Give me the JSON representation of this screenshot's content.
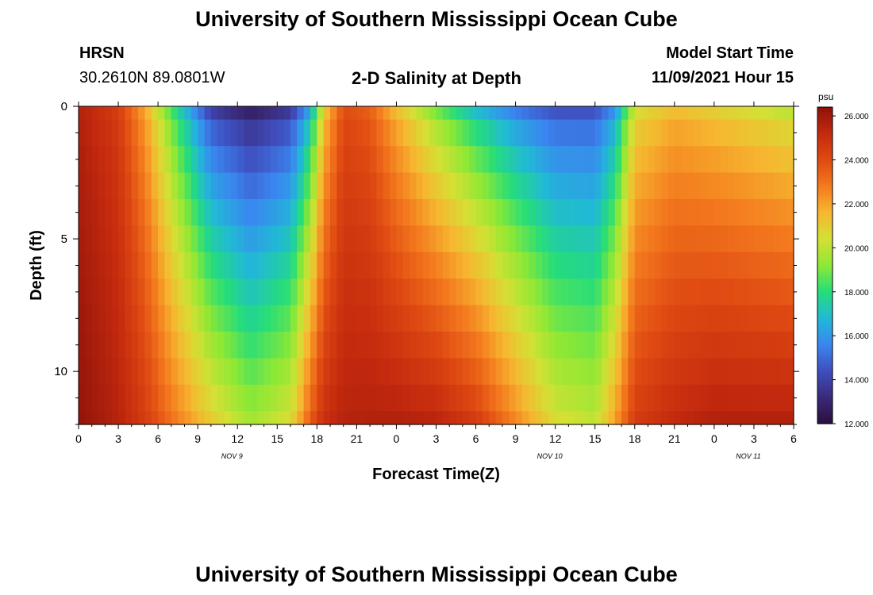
{
  "page_title": "University of Southern Mississippi Ocean Cube",
  "page_title_bottom": "University of Southern Mississippi Ocean Cube",
  "station": {
    "name": "HRSN",
    "coords": "30.2610N  89.0801W"
  },
  "plot_title": "2-D Salinity at Depth",
  "model": {
    "label": "Model Start Time",
    "value": "11/09/2021 Hour 15"
  },
  "chart_data": {
    "type": "heatmap",
    "title": "2-D Salinity at Depth",
    "xlabel": "Forecast Time(Z)",
    "ylabel": "Depth (ft)",
    "x_range_hours": [
      0,
      54
    ],
    "y_range_ft": [
      0,
      12
    ],
    "x_tick_labels": [
      "0",
      "3",
      "6",
      "9",
      "12",
      "15",
      "18",
      "21",
      "0",
      "3",
      "6",
      "9",
      "12",
      "15",
      "18",
      "21",
      "0",
      "3",
      "6"
    ],
    "y_tick_labels": [
      "0",
      "5",
      "10"
    ],
    "y_tick_values": [
      0,
      5,
      10
    ],
    "date_labels": [
      {
        "text": "NOV 9",
        "hour": 12
      },
      {
        "text": "NOV 10",
        "hour": 36
      },
      {
        "text": "NOV 11",
        "hour": 51
      }
    ],
    "colorbar": {
      "unit": "psu",
      "min": 12.0,
      "max": 26.4,
      "labels": [
        "26.000",
        "24.000",
        "22.000",
        "20.000",
        "18.000",
        "16.000",
        "14.000",
        "12.000"
      ],
      "label_values": [
        26,
        24,
        22,
        20,
        18,
        16,
        14,
        12
      ]
    },
    "colormap": [
      "#2a0f3e",
      "#3a2a7a",
      "#3f4fbf",
      "#3a86f0",
      "#21b9d6",
      "#25dd7a",
      "#8ee834",
      "#d4e034",
      "#f6b730",
      "#f47a1e",
      "#df4a12",
      "#c42a0e",
      "#8e120a"
    ],
    "depth_levels_ft": [
      0,
      1,
      2,
      3,
      4,
      5,
      6,
      7,
      8,
      9,
      10,
      11,
      12
    ],
    "salinity_profile_keyframes": [
      {
        "hour": 0,
        "surface": 25.6,
        "bottom": 26.3
      },
      {
        "hour": 3,
        "surface": 24.5,
        "bottom": 25.5
      },
      {
        "hour": 5,
        "surface": 22.0,
        "bottom": 24.5
      },
      {
        "hour": 7,
        "surface": 18.5,
        "bottom": 23.0
      },
      {
        "hour": 10,
        "surface": 14.0,
        "bottom": 21.0
      },
      {
        "hour": 13,
        "surface": 12.8,
        "bottom": 19.5
      },
      {
        "hour": 16,
        "surface": 13.8,
        "bottom": 20.5
      },
      {
        "hour": 17.5,
        "surface": 16.5,
        "bottom": 23.5
      },
      {
        "hour": 18.5,
        "surface": 21.0,
        "bottom": 25.0
      },
      {
        "hour": 20,
        "surface": 24.0,
        "bottom": 25.5
      },
      {
        "hour": 22,
        "surface": 23.5,
        "bottom": 25.6
      },
      {
        "hour": 24,
        "surface": 21.5,
        "bottom": 25.6
      },
      {
        "hour": 27,
        "surface": 19.0,
        "bottom": 25.4
      },
      {
        "hour": 30,
        "surface": 17.0,
        "bottom": 24.5
      },
      {
        "hour": 33,
        "surface": 15.5,
        "bottom": 22.5
      },
      {
        "hour": 36,
        "surface": 14.5,
        "bottom": 20.5
      },
      {
        "hour": 39,
        "surface": 14.5,
        "bottom": 20.0
      },
      {
        "hour": 40.5,
        "surface": 16.0,
        "bottom": 22.0
      },
      {
        "hour": 42,
        "surface": 20.5,
        "bottom": 24.5
      },
      {
        "hour": 45,
        "surface": 21.5,
        "bottom": 25.2
      },
      {
        "hour": 48,
        "surface": 21.0,
        "bottom": 25.6
      },
      {
        "hour": 51,
        "surface": 20.5,
        "bottom": 25.6
      },
      {
        "hour": 54,
        "surface": 20.0,
        "bottom": 25.6
      }
    ],
    "colorbar_range": [
      12,
      26.4
    ]
  }
}
